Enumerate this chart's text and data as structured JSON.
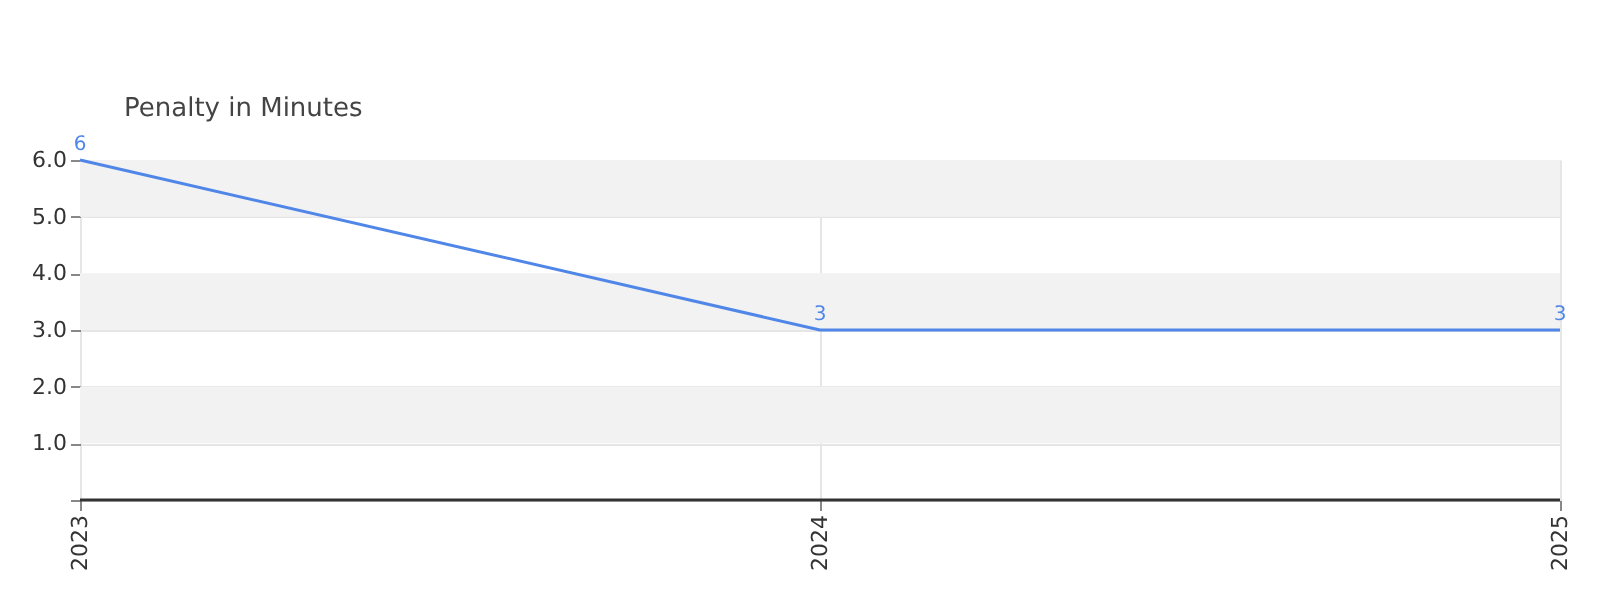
{
  "chart_data": {
    "type": "line",
    "title": "Penalty in Minutes",
    "categories": [
      "2023",
      "2024",
      "2025"
    ],
    "series": [
      {
        "color": "#4f86e8",
        "values": [
          6,
          3,
          3
        ]
      }
    ],
    "ylim": [
      0,
      6
    ],
    "yticks": [
      {
        "value": 0,
        "label": null
      },
      {
        "value": 1,
        "label": "1.0"
      },
      {
        "value": 2,
        "label": "2.0"
      },
      {
        "value": 3,
        "label": "3.0"
      },
      {
        "value": 4,
        "label": "4.0"
      },
      {
        "value": 5,
        "label": "5.0"
      },
      {
        "value": 6,
        "label": "6.0"
      }
    ],
    "grid": true,
    "data_labels": true,
    "marker": "none",
    "line_style": "solid",
    "legend": false
  }
}
